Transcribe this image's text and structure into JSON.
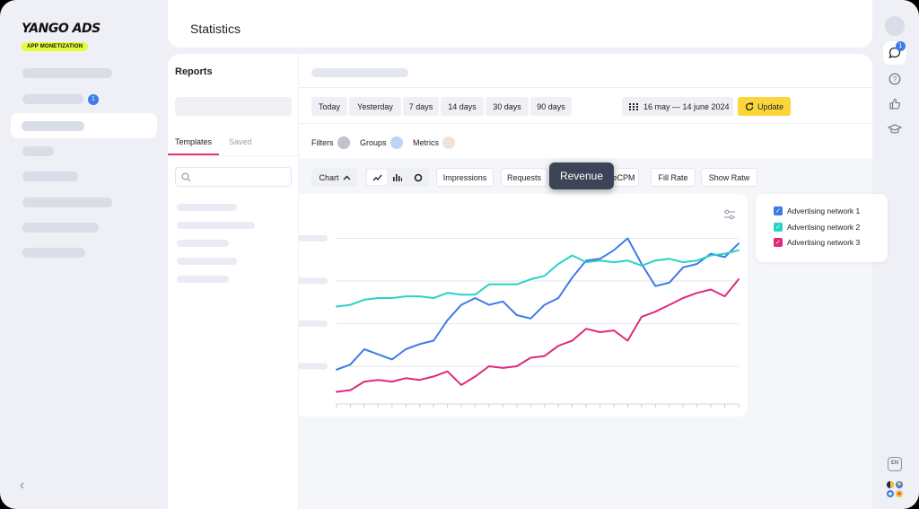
{
  "brand": {
    "name": "YANGO ADS",
    "tagline": "APP MONETIZATION"
  },
  "sidebar": {
    "badge_count": "1"
  },
  "rail": {
    "chat_badge": "1",
    "language": "EN"
  },
  "header": {
    "title": "Statistics"
  },
  "reports": {
    "title": "Reports",
    "tabs": [
      {
        "label": "Templates",
        "active": true
      },
      {
        "label": "Saved",
        "active": false
      }
    ]
  },
  "periods": [
    "Today",
    "Yesterday",
    "7 days",
    "14 days",
    "30 days",
    "90 days"
  ],
  "date_range": "16 may — 14 june 2024",
  "update_label": "Update",
  "filters": [
    {
      "label": "Filters",
      "color": "#bfc3cd"
    },
    {
      "label": "Groups",
      "color": "#bcd5f5"
    },
    {
      "label": "Metrics",
      "color": "#efe3d9"
    }
  ],
  "chart_button": "Chart",
  "metric_chips": [
    "Impressions",
    "Requests",
    "eCPM",
    "Fill Rate",
    "Show Ratw"
  ],
  "tooltip": "Revenue",
  "legend": [
    {
      "label": "Advertising network 1",
      "color": "#3d7be8"
    },
    {
      "label": "Advertising network 2",
      "color": "#2ad1c6"
    },
    {
      "label": "Advertising network 3",
      "color": "#e0287f"
    }
  ],
  "chart_data": {
    "type": "line",
    "title": "",
    "xlabel": "",
    "ylabel": "",
    "x": [
      1,
      2,
      3,
      4,
      5,
      6,
      7,
      8,
      9,
      10,
      11,
      12,
      13,
      14,
      15,
      16,
      17,
      18,
      19,
      20,
      21,
      22,
      23,
      24,
      25,
      26,
      27,
      28,
      29,
      30
    ],
    "ylim": [
      0,
      100
    ],
    "grid": true,
    "legend_position": "right",
    "series": [
      {
        "name": "Advertising network 1",
        "color": "#3d7be8",
        "values": [
          18,
          21,
          30,
          27,
          24,
          30,
          33,
          35,
          47,
          56,
          60,
          56,
          58,
          50,
          48,
          56,
          60,
          72,
          82,
          83,
          88,
          95,
          80,
          67,
          69,
          78,
          80,
          86,
          84,
          92
        ]
      },
      {
        "name": "Advertising network 2",
        "color": "#2ad1c6",
        "values": [
          55,
          56,
          59,
          60,
          60,
          61,
          61,
          60,
          63,
          62,
          62,
          68,
          68,
          68,
          71,
          73,
          80,
          85,
          81,
          82,
          81,
          82,
          79,
          82,
          83,
          81,
          82,
          85,
          86,
          88
        ]
      },
      {
        "name": "Advertising network 3",
        "color": "#e0287f",
        "values": [
          5,
          6,
          11,
          12,
          11,
          13,
          12,
          14,
          17,
          9,
          14,
          20,
          19,
          20,
          25,
          26,
          32,
          35,
          42,
          40,
          41,
          35,
          49,
          52,
          56,
          60,
          63,
          65,
          61,
          71
        ]
      }
    ]
  }
}
